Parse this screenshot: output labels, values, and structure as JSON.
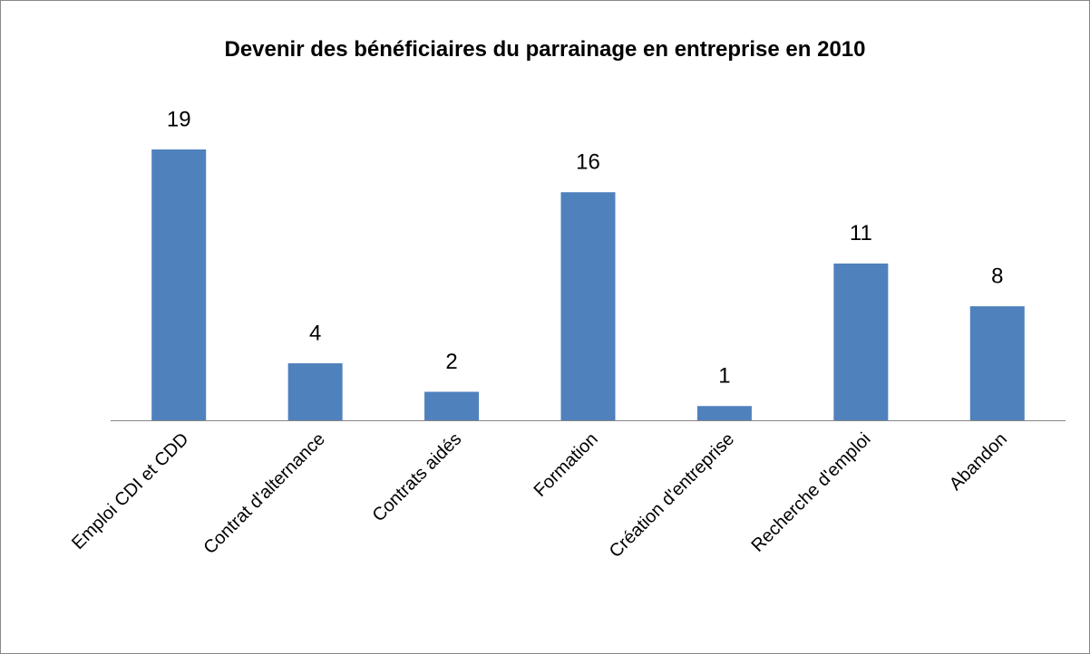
{
  "chart_data": {
    "type": "bar",
    "title": "Devenir des bénéficiaires du parrainage en entreprise en 2010",
    "categories": [
      "Emploi CDI et CDD",
      "Contrat d'alternance",
      "Contrats aidés",
      "Formation",
      "Création d'entreprise",
      "Recherche d'emploi",
      "Abandon"
    ],
    "values": [
      19,
      4,
      2,
      16,
      1,
      11,
      8
    ],
    "color": "#4f81bd"
  }
}
